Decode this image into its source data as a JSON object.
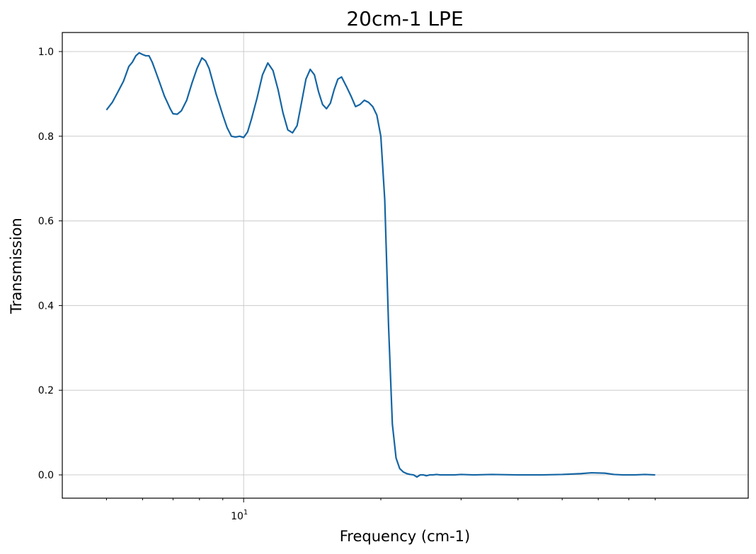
{
  "chart_data": {
    "type": "line",
    "title": "20cm-1 LPE",
    "xlabel": "Frequency (cm-1)",
    "ylabel": "Transmission",
    "x_scale": "log",
    "xlim": [
      4.0,
      128.0
    ],
    "ylim": [
      -0.055,
      1.045
    ],
    "grid": true,
    "line_color": "#1565a3",
    "grid_color": "#cccccc",
    "x_major_ticks": [
      {
        "value": 10,
        "base": "10",
        "exp": "1"
      }
    ],
    "x_minor_ticks": [
      5,
      6,
      7,
      8,
      9,
      20,
      30,
      40,
      50,
      60,
      70,
      80
    ],
    "y_ticks": [
      {
        "value": 0.0,
        "label": "0.0"
      },
      {
        "value": 0.2,
        "label": "0.2"
      },
      {
        "value": 0.4,
        "label": "0.4"
      },
      {
        "value": 0.6,
        "label": "0.6"
      },
      {
        "value": 0.8,
        "label": "0.8"
      },
      {
        "value": 1.0,
        "label": "1.0"
      }
    ],
    "series": [
      {
        "x": [
          5.0,
          5.15,
          5.3,
          5.45,
          5.6,
          5.7,
          5.8,
          5.9,
          6.0,
          6.1,
          6.2,
          6.3,
          6.4,
          6.5,
          6.6,
          6.7,
          6.8,
          6.9,
          7.0,
          7.15,
          7.3,
          7.5,
          7.7,
          7.9,
          8.1,
          8.25,
          8.4,
          8.55,
          8.7,
          8.85,
          9.0,
          9.2,
          9.4,
          9.6,
          9.8,
          10.0,
          10.2,
          10.4,
          10.7,
          11.0,
          11.3,
          11.6,
          11.9,
          12.2,
          12.5,
          12.8,
          13.1,
          13.4,
          13.7,
          14.0,
          14.3,
          14.6,
          14.9,
          15.2,
          15.5,
          15.8,
          16.1,
          16.4,
          16.8,
          17.2,
          17.6,
          18.0,
          18.4,
          18.8,
          19.2,
          19.6,
          20.0,
          20.4,
          20.8,
          21.2,
          21.6,
          22.0,
          22.4,
          22.8,
          23.2,
          23.6,
          24.0,
          24.4,
          24.8,
          25.2,
          25.6,
          26.0,
          26.5,
          27.0,
          28.0,
          29.0,
          30.0,
          32.0,
          35.0,
          40.0,
          45.0,
          50.0,
          55.0,
          58.0,
          62.0,
          65.0,
          68.0,
          72.0,
          76.0,
          80.0
        ],
        "y": [
          0.862,
          0.88,
          0.905,
          0.93,
          0.965,
          0.975,
          0.99,
          0.997,
          0.993,
          0.99,
          0.99,
          0.975,
          0.955,
          0.935,
          0.915,
          0.895,
          0.88,
          0.865,
          0.853,
          0.852,
          0.86,
          0.885,
          0.925,
          0.96,
          0.985,
          0.978,
          0.96,
          0.93,
          0.9,
          0.875,
          0.85,
          0.82,
          0.8,
          0.798,
          0.8,
          0.797,
          0.81,
          0.84,
          0.89,
          0.945,
          0.973,
          0.955,
          0.91,
          0.855,
          0.815,
          0.808,
          0.825,
          0.88,
          0.935,
          0.958,
          0.945,
          0.905,
          0.875,
          0.865,
          0.878,
          0.91,
          0.935,
          0.94,
          0.918,
          0.895,
          0.87,
          0.875,
          0.885,
          0.88,
          0.87,
          0.85,
          0.8,
          0.65,
          0.35,
          0.12,
          0.04,
          0.015,
          0.007,
          0.003,
          0.001,
          0.0,
          -0.005,
          0.0,
          0.0,
          -0.002,
          0.0,
          0.0,
          0.001,
          0.0,
          0.0,
          0.0,
          0.001,
          0.0,
          0.001,
          0.0,
          0.0,
          0.001,
          0.003,
          0.005,
          0.004,
          0.001,
          0.0,
          0.0,
          0.001,
          0.0
        ]
      }
    ]
  }
}
